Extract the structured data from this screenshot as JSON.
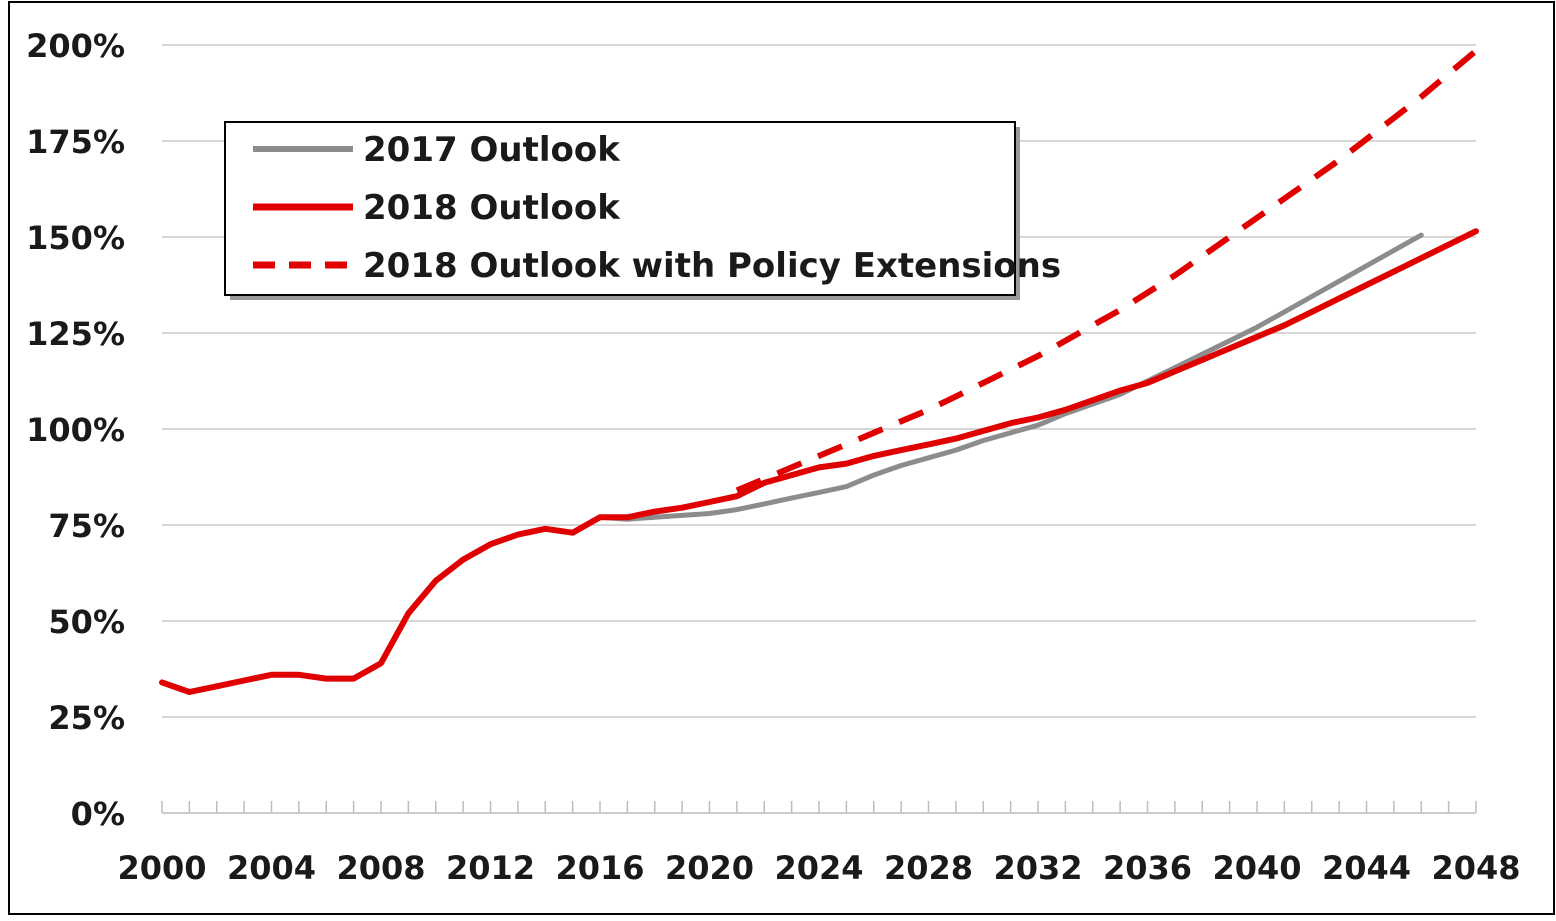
{
  "chart_data": {
    "type": "line",
    "title": "",
    "xlabel": "",
    "ylabel": "",
    "xlim": [
      2000,
      2048
    ],
    "ylim": [
      0,
      200
    ],
    "x_ticks": [
      "2000",
      "2004",
      "2008",
      "2012",
      "2016",
      "2020",
      "2024",
      "2028",
      "2032",
      "2036",
      "2040",
      "2044",
      "2048"
    ],
    "y_ticks": [
      "0%",
      "25%",
      "50%",
      "75%",
      "100%",
      "125%",
      "150%",
      "175%",
      "200%"
    ],
    "grid": true,
    "legend_position": "top-left",
    "series": [
      {
        "name": "2017 Outlook",
        "color": "#8c8c8c",
        "style": "solid",
        "points": [
          [
            2000,
            34
          ],
          [
            2001,
            31.5
          ],
          [
            2002,
            33
          ],
          [
            2003,
            34.5
          ],
          [
            2004,
            36
          ],
          [
            2005,
            36
          ],
          [
            2006,
            35
          ],
          [
            2007,
            35
          ],
          [
            2008,
            39
          ],
          [
            2009,
            52
          ],
          [
            2010,
            60.5
          ],
          [
            2011,
            66
          ],
          [
            2012,
            70
          ],
          [
            2013,
            72.5
          ],
          [
            2014,
            74
          ],
          [
            2015,
            73
          ],
          [
            2016,
            77
          ],
          [
            2017,
            76.5
          ],
          [
            2018,
            77
          ],
          [
            2019,
            77.5
          ],
          [
            2020,
            78
          ],
          [
            2021,
            79
          ],
          [
            2022,
            80.5
          ],
          [
            2023,
            82
          ],
          [
            2024,
            83.5
          ],
          [
            2025,
            85
          ],
          [
            2026,
            88
          ],
          [
            2027,
            90.5
          ],
          [
            2028,
            92.5
          ],
          [
            2029,
            94.5
          ],
          [
            2030,
            97
          ],
          [
            2031,
            99
          ],
          [
            2032,
            101
          ],
          [
            2033,
            104
          ],
          [
            2034,
            106.5
          ],
          [
            2035,
            109
          ],
          [
            2036,
            112.5
          ],
          [
            2037,
            116
          ],
          [
            2038,
            119.5
          ],
          [
            2039,
            123
          ],
          [
            2040,
            126.5
          ],
          [
            2041,
            130.5
          ],
          [
            2042,
            134.5
          ],
          [
            2043,
            138.5
          ],
          [
            2044,
            142.5
          ],
          [
            2045,
            146.5
          ],
          [
            2046,
            150.5
          ]
        ]
      },
      {
        "name": "2018 Outlook",
        "color": "#e00000",
        "style": "solid",
        "points": [
          [
            2000,
            34
          ],
          [
            2001,
            31.5
          ],
          [
            2002,
            33
          ],
          [
            2003,
            34.5
          ],
          [
            2004,
            36
          ],
          [
            2005,
            36
          ],
          [
            2006,
            35
          ],
          [
            2007,
            35
          ],
          [
            2008,
            39
          ],
          [
            2009,
            52
          ],
          [
            2010,
            60.5
          ],
          [
            2011,
            66
          ],
          [
            2012,
            70
          ],
          [
            2013,
            72.5
          ],
          [
            2014,
            74
          ],
          [
            2015,
            73
          ],
          [
            2016,
            77
          ],
          [
            2017,
            77
          ],
          [
            2018,
            78.5
          ],
          [
            2019,
            79.5
          ],
          [
            2020,
            81
          ],
          [
            2021,
            82.5
          ],
          [
            2022,
            86
          ],
          [
            2023,
            88
          ],
          [
            2024,
            90
          ],
          [
            2025,
            91
          ],
          [
            2026,
            93
          ],
          [
            2027,
            94.5
          ],
          [
            2028,
            96
          ],
          [
            2029,
            97.5
          ],
          [
            2030,
            99.5
          ],
          [
            2031,
            101.5
          ],
          [
            2032,
            103
          ],
          [
            2033,
            105
          ],
          [
            2034,
            107.5
          ],
          [
            2035,
            110
          ],
          [
            2036,
            112
          ],
          [
            2037,
            115
          ],
          [
            2038,
            118
          ],
          [
            2039,
            121
          ],
          [
            2040,
            124
          ],
          [
            2041,
            127
          ],
          [
            2042,
            130.5
          ],
          [
            2043,
            134
          ],
          [
            2044,
            137.5
          ],
          [
            2045,
            141
          ],
          [
            2046,
            144.5
          ],
          [
            2047,
            148
          ],
          [
            2048,
            151.5
          ]
        ]
      },
      {
        "name": "2018 Outlook with Policy Extensions",
        "color": "#e00000",
        "style": "dashed",
        "points": [
          [
            2021,
            84
          ],
          [
            2022,
            87
          ],
          [
            2023,
            90
          ],
          [
            2024,
            93
          ],
          [
            2025,
            96
          ],
          [
            2026,
            99
          ],
          [
            2027,
            102
          ],
          [
            2028,
            105
          ],
          [
            2029,
            108.5
          ],
          [
            2030,
            112
          ],
          [
            2031,
            115.5
          ],
          [
            2032,
            119
          ],
          [
            2033,
            123
          ],
          [
            2034,
            127
          ],
          [
            2035,
            131
          ],
          [
            2036,
            135.5
          ],
          [
            2037,
            140
          ],
          [
            2038,
            145
          ],
          [
            2039,
            150
          ],
          [
            2040,
            155
          ],
          [
            2041,
            160
          ],
          [
            2042,
            165
          ],
          [
            2043,
            170
          ],
          [
            2044,
            175.5
          ],
          [
            2045,
            181
          ],
          [
            2046,
            186.5
          ],
          [
            2047,
            192.5
          ],
          [
            2048,
            198.5
          ]
        ]
      }
    ]
  }
}
